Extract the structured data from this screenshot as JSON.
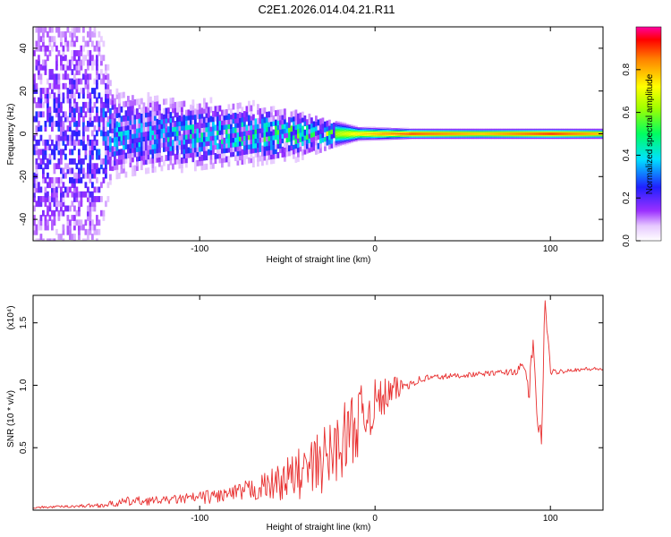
{
  "figure_title": "C2E1.2026.014.04.21.R11",
  "colors": {
    "snr_line": "#e83030",
    "axis": "#000000",
    "background": "#ffffff"
  },
  "chart_data": [
    {
      "type": "heatmap",
      "title": "C2E1.2026.014.04.21.R11",
      "xlabel": "Height of straight line (km)",
      "ylabel": "Frequency (Hz)",
      "xlim": [
        -195,
        130
      ],
      "ylim": [
        -50,
        50
      ],
      "x_ticks": [
        -100,
        0,
        100
      ],
      "y_ticks": [
        40,
        20,
        0,
        -20,
        -40
      ],
      "tick_labels": {
        "x": [
          "-100",
          "0",
          "100"
        ],
        "y": [
          "40",
          "20",
          "0",
          "-20",
          "-40"
        ]
      },
      "colorbar": {
        "label": "Normalized spectral amplitude",
        "range": [
          0,
          1
        ],
        "ticks": [
          0.0,
          0.2,
          0.4,
          0.6,
          0.8
        ],
        "tick_labels": [
          "0.0",
          "0.2",
          "0.4",
          "0.6",
          "0.8"
        ],
        "colormap": "rainbow (white-violet-blue-cyan-green-yellow-red-magenta)"
      },
      "band_profile": [
        {
          "x": -195,
          "half_width": 50,
          "peak": 0.22
        },
        {
          "x": -160,
          "half_width": 45,
          "peak": 0.25
        },
        {
          "x": -150,
          "half_width": 14,
          "peak": 0.35
        },
        {
          "x": -120,
          "half_width": 12,
          "peak": 0.38
        },
        {
          "x": -100,
          "half_width": 11,
          "peak": 0.4
        },
        {
          "x": -80,
          "half_width": 10,
          "peak": 0.45
        },
        {
          "x": -50,
          "half_width": 8,
          "peak": 0.5
        },
        {
          "x": -30,
          "half_width": 5,
          "peak": 0.55
        },
        {
          "x": -10,
          "half_width": 2,
          "peak": 0.75
        },
        {
          "x": 20,
          "half_width": 1.5,
          "peak": 0.9
        },
        {
          "x": 60,
          "half_width": 1.5,
          "peak": 0.8
        },
        {
          "x": 100,
          "half_width": 1.5,
          "peak": 0.92
        },
        {
          "x": 130,
          "half_width": 1.5,
          "peak": 0.8
        }
      ]
    },
    {
      "type": "line",
      "title": "",
      "xlabel": "Height of straight line (km)",
      "ylabel": "SNR (10 * v/v)",
      "y_scale_label": "(x10⁴)",
      "xlim": [
        -195,
        130
      ],
      "ylim": [
        0,
        1.72
      ],
      "x_ticks": [
        -100,
        0,
        100
      ],
      "y_ticks": [
        0.5,
        1.0,
        1.5
      ],
      "tick_labels": {
        "x": [
          "-100",
          "0",
          "100"
        ],
        "y": [
          "0.5",
          "1.0",
          "1.5"
        ]
      },
      "series": [
        {
          "name": "SNR",
          "color": "#e83030",
          "x": [
            -195,
            -175,
            -155,
            -140,
            -120,
            -100,
            -80,
            -60,
            -45,
            -35,
            -25,
            -15,
            -5,
            0,
            10,
            20,
            30,
            50,
            70,
            80,
            85,
            88,
            90,
            92,
            95,
            97,
            100,
            110,
            120,
            130
          ],
          "y": [
            0.02,
            0.03,
            0.04,
            0.07,
            0.08,
            0.1,
            0.13,
            0.2,
            0.28,
            0.34,
            0.45,
            0.62,
            0.78,
            0.85,
            0.95,
            1.02,
            1.06,
            1.08,
            1.1,
            1.11,
            1.15,
            0.95,
            1.35,
            0.8,
            0.55,
            1.72,
            1.1,
            1.12,
            1.13,
            1.13
          ],
          "noise": [
            0.01,
            0.01,
            0.02,
            0.04,
            0.03,
            0.05,
            0.07,
            0.12,
            0.2,
            0.25,
            0.28,
            0.3,
            0.25,
            0.2,
            0.12,
            0.04,
            0.03,
            0.02,
            0.02,
            0.03,
            0.05,
            0.1,
            0.1,
            0.1,
            0.1,
            0.1,
            0.03,
            0.015,
            0.015,
            0.015
          ]
        }
      ]
    }
  ]
}
